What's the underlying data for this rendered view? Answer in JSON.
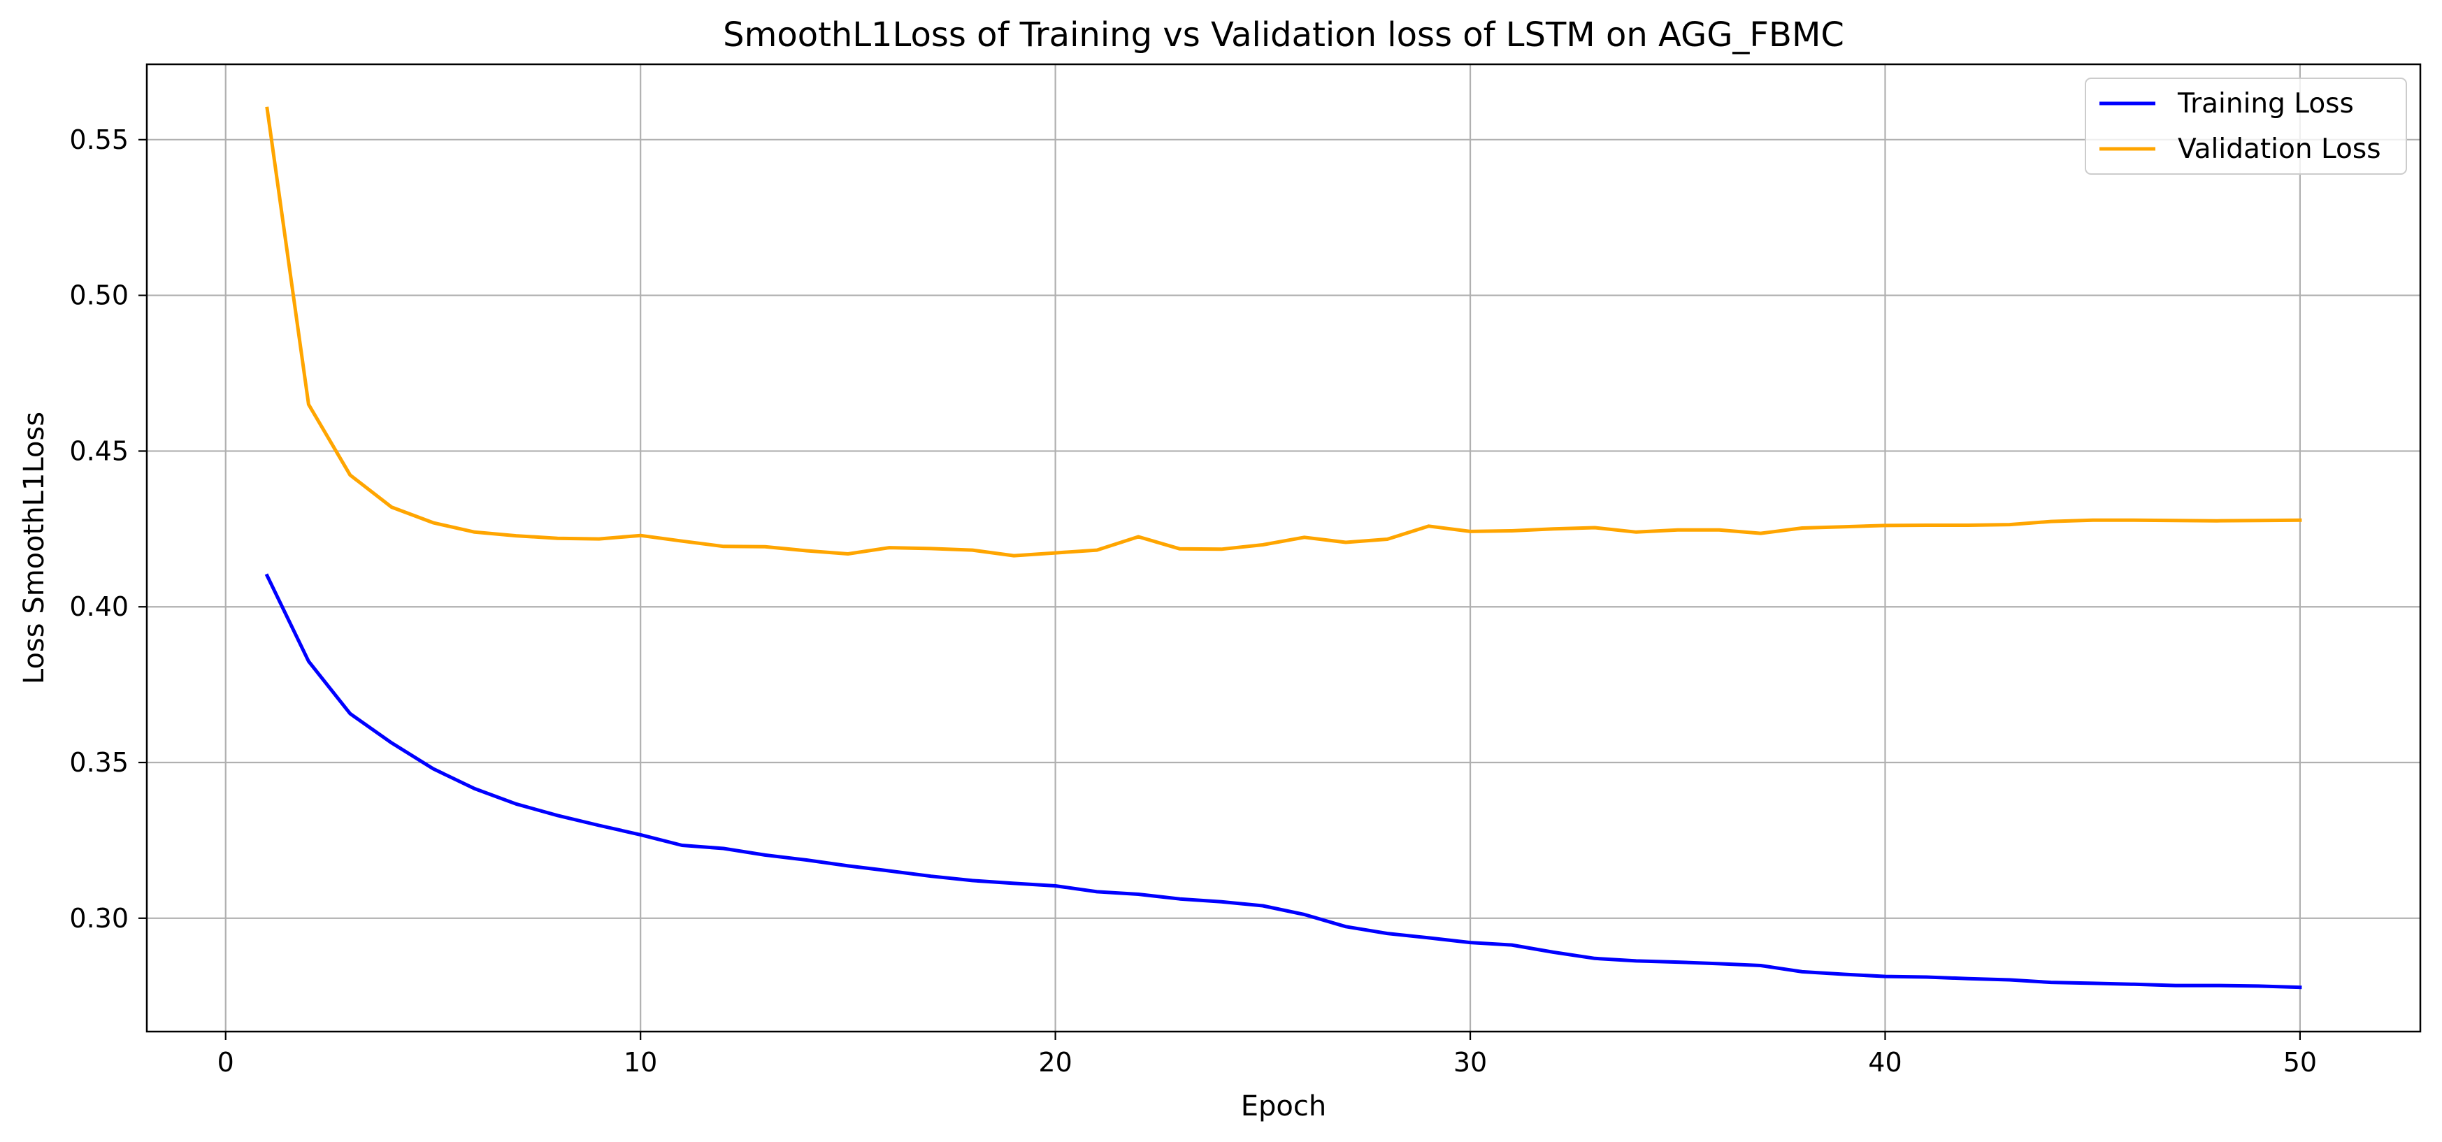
{
  "chart_data": {
    "type": "line",
    "title": "SmoothL1Loss of Training vs Validation loss of LSTM on AGG_FBMC",
    "xlabel": "Epoch",
    "ylabel": "Loss SmoothL1Loss",
    "xlim": [
      -1.9,
      52.9
    ],
    "ylim": [
      0.2636,
      0.5742
    ],
    "xticks": [
      0,
      10,
      20,
      30,
      40,
      50
    ],
    "xtick_labels": [
      "0",
      "10",
      "20",
      "30",
      "40",
      "50"
    ],
    "yticks": [
      0.3,
      0.35,
      0.4,
      0.45,
      0.5,
      0.55
    ],
    "ytick_labels": [
      "0.30",
      "0.35",
      "0.40",
      "0.45",
      "0.50",
      "0.55"
    ],
    "grid": true,
    "legend_position": "top-right",
    "x": [
      1,
      2,
      3,
      4,
      5,
      6,
      7,
      8,
      9,
      10,
      11,
      12,
      13,
      14,
      15,
      16,
      17,
      18,
      19,
      20,
      21,
      22,
      23,
      24,
      25,
      26,
      27,
      28,
      29,
      30,
      31,
      32,
      33,
      34,
      35,
      36,
      37,
      38,
      39,
      40,
      41,
      42,
      43,
      44,
      45,
      46,
      47,
      48,
      49,
      50
    ],
    "series": [
      {
        "name": "Training Loss",
        "color": "#0000ff",
        "values": [
          0.41,
          0.3825,
          0.3657,
          0.3563,
          0.348,
          0.3416,
          0.3367,
          0.333,
          0.3298,
          0.3268,
          0.3234,
          0.3224,
          0.3203,
          0.3187,
          0.3168,
          0.3152,
          0.3135,
          0.3121,
          0.3112,
          0.3104,
          0.3085,
          0.3077,
          0.3062,
          0.3053,
          0.304,
          0.3012,
          0.2973,
          0.2951,
          0.2937,
          0.2922,
          0.2914,
          0.2891,
          0.2871,
          0.2863,
          0.2859,
          0.2854,
          0.2848,
          0.2828,
          0.282,
          0.2813,
          0.2811,
          0.2806,
          0.2802,
          0.2794,
          0.2791,
          0.2788,
          0.2784,
          0.2784,
          0.2782,
          0.2778
        ]
      },
      {
        "name": "Validation Loss",
        "color": "#ffa500",
        "values": [
          0.56,
          0.465,
          0.4423,
          0.432,
          0.427,
          0.424,
          0.4228,
          0.422,
          0.4218,
          0.4229,
          0.4211,
          0.4194,
          0.4193,
          0.418,
          0.417,
          0.419,
          0.4187,
          0.4182,
          0.4164,
          0.4173,
          0.4182,
          0.4225,
          0.4186,
          0.4185,
          0.4199,
          0.4223,
          0.4207,
          0.4217,
          0.4259,
          0.4242,
          0.4244,
          0.425,
          0.4254,
          0.424,
          0.4247,
          0.4247,
          0.4236,
          0.4253,
          0.4257,
          0.4261,
          0.4262,
          0.4262,
          0.4264,
          0.4274,
          0.4278,
          0.4278,
          0.4277,
          0.4276,
          0.4277,
          0.4278
        ]
      }
    ]
  }
}
